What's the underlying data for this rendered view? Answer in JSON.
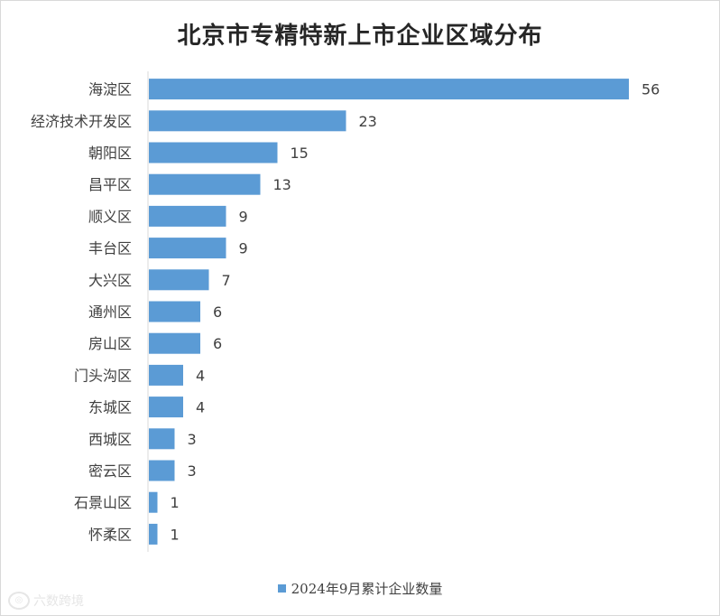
{
  "chart_data": {
    "type": "bar",
    "orientation": "horizontal",
    "title": "北京市专精特新上市企业区域分布",
    "categories": [
      "海淀区",
      "经济技术开发区",
      "朝阳区",
      "昌平区",
      "顺义区",
      "丰台区",
      "大兴区",
      "通州区",
      "房山区",
      "门头沟区",
      "东城区",
      "西城区",
      "密云区",
      "石景山区",
      "怀柔区"
    ],
    "series": [
      {
        "name": "2024年9月累计企业数量",
        "values": [
          56,
          23,
          15,
          13,
          9,
          9,
          7,
          6,
          6,
          4,
          4,
          3,
          3,
          1,
          1
        ]
      }
    ],
    "xlim": [
      0,
      60
    ],
    "grid": false,
    "legend_position": "bottom",
    "data_labels": true,
    "bar_color": "#5b9bd5"
  },
  "watermark": {
    "text": "六数跨境"
  }
}
